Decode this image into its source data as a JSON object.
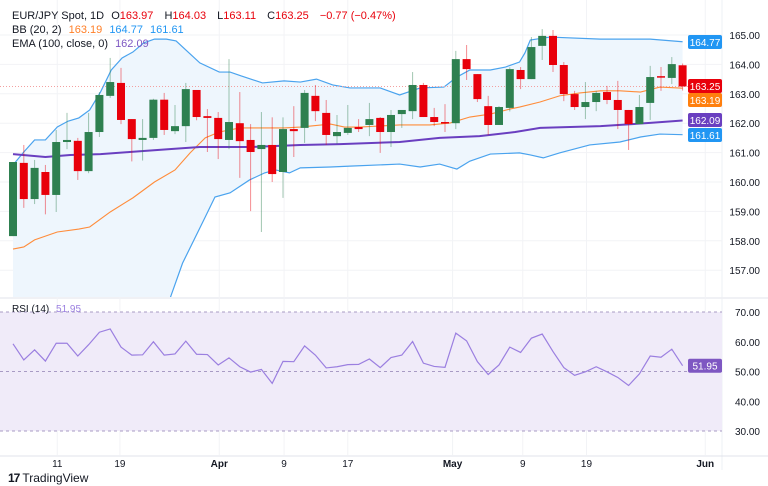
{
  "header": {
    "symbol": "EUR/JPY Spot, 1D",
    "open_label": "O",
    "open": "163.97",
    "high_label": "H",
    "high": "164.03",
    "low_label": "L",
    "low": "163.11",
    "close_label": "C",
    "close": "163.25",
    "change": "−0.77 (−0.47%)",
    "bb_label": "BB (20, 2)",
    "bb_mid": "163.19",
    "bb_upper": "164.77",
    "bb_lower": "161.61",
    "ema_label": "EMA (100, close, 0)",
    "ema": "162.09"
  },
  "rsi_header": {
    "label": "RSI (14)",
    "value": "51.95"
  },
  "branding": {
    "logo_text": "TradingView",
    "logo_mark": "17"
  },
  "colors": {
    "up": "#2e8050",
    "down": "#e8000b",
    "bb_band": "#4aa3ee",
    "bb_fill": "#eef6fd",
    "bb_mid": "#ff8c3a",
    "ema": "#6a3fc0",
    "rsi": "#9b7fe0",
    "rsi_fill": "#f0ebf9"
  },
  "chart_data": [
    {
      "type": "candlestick",
      "title": "EUR/JPY Spot, 1D",
      "ylim": [
        156.2,
        165.2
      ],
      "y_ticks": [
        "165.00",
        "164.00",
        "163.00",
        "162.00",
        "161.00",
        "160.00",
        "159.00",
        "158.00",
        "157.00"
      ],
      "x_ticks": [
        "11",
        "19",
        "Apr",
        "9",
        "17",
        "May",
        "9",
        "19",
        "Jun"
      ],
      "grid": true,
      "last_price": 163.25,
      "candles_ohlc": [
        [
          158.16,
          160.68,
          158.16,
          160.68
        ],
        [
          160.65,
          161.26,
          159.12,
          159.42
        ],
        [
          159.42,
          160.75,
          159.25,
          160.48
        ],
        [
          160.34,
          160.58,
          158.9,
          159.56
        ],
        [
          159.56,
          161.77,
          158.98,
          161.36
        ],
        [
          161.36,
          162.35,
          161.12,
          161.43
        ],
        [
          161.4,
          161.5,
          160.07,
          160.37
        ],
        [
          160.37,
          162.35,
          160.3,
          161.7
        ],
        [
          161.7,
          163.06,
          161.53,
          162.96
        ],
        [
          162.93,
          164.22,
          162.86,
          163.4
        ],
        [
          163.37,
          163.88,
          161.97,
          162.11
        ],
        [
          162.14,
          162.14,
          160.7,
          161.46
        ],
        [
          161.43,
          162.14,
          160.73,
          161.5
        ],
        [
          161.5,
          162.83,
          161.43,
          162.8
        ],
        [
          162.8,
          163.03,
          161.6,
          161.77
        ],
        [
          161.73,
          162.62,
          161.63,
          161.9
        ],
        [
          161.9,
          163.37,
          161.36,
          163.16
        ],
        [
          163.13,
          163.13,
          162.1,
          162.21
        ],
        [
          162.24,
          162.48,
          161.02,
          162.18
        ],
        [
          162.18,
          162.38,
          160.78,
          161.46
        ],
        [
          161.43,
          164.18,
          161.12,
          162.04
        ],
        [
          162.0,
          163.06,
          160.14,
          161.39
        ],
        [
          161.43,
          161.97,
          159.01,
          161.02
        ],
        [
          161.12,
          162.38,
          158.3,
          161.26
        ],
        [
          161.26,
          162.2,
          160.0,
          160.27
        ],
        [
          160.34,
          162.2,
          159.46,
          161.8
        ],
        [
          161.8,
          162.58,
          160.85,
          161.73
        ],
        [
          161.84,
          163.13,
          161.33,
          163.03
        ],
        [
          162.93,
          163.3,
          162.07,
          162.41
        ],
        [
          162.35,
          162.79,
          161.26,
          161.6
        ],
        [
          161.56,
          162.28,
          161.3,
          161.7
        ],
        [
          161.67,
          162.62,
          161.6,
          161.84
        ],
        [
          161.87,
          162.14,
          161.7,
          161.8
        ],
        [
          161.94,
          162.69,
          161.56,
          162.14
        ],
        [
          162.18,
          162.21,
          160.99,
          161.7
        ],
        [
          161.7,
          162.45,
          161.19,
          162.28
        ],
        [
          162.31,
          162.45,
          161.84,
          162.45
        ],
        [
          162.41,
          163.74,
          162.14,
          163.3
        ],
        [
          163.3,
          163.37,
          162.21,
          162.21
        ],
        [
          162.21,
          162.52,
          161.9,
          162.04
        ],
        [
          162.04,
          162.65,
          161.7,
          162.0
        ],
        [
          162.0,
          164.46,
          161.8,
          164.18
        ],
        [
          164.18,
          164.66,
          163.47,
          163.84
        ],
        [
          163.67,
          163.67,
          162.72,
          162.82
        ],
        [
          162.58,
          162.93,
          161.6,
          161.94
        ],
        [
          161.94,
          162.58,
          161.94,
          162.55
        ],
        [
          162.52,
          163.9,
          162.4,
          163.84
        ],
        [
          163.81,
          163.91,
          163.16,
          163.5
        ],
        [
          163.5,
          164.93,
          163.5,
          164.59
        ],
        [
          164.63,
          165.2,
          164.15,
          164.97
        ],
        [
          164.97,
          165.17,
          163.74,
          163.98
        ],
        [
          163.98,
          164.08,
          162.75,
          162.99
        ],
        [
          162.99,
          163.1,
          162.45,
          162.55
        ],
        [
          162.55,
          163.4,
          162.14,
          162.72
        ],
        [
          162.72,
          163.1,
          162.41,
          163.03
        ],
        [
          163.06,
          163.27,
          162.65,
          162.79
        ],
        [
          162.79,
          163.44,
          161.8,
          162.45
        ],
        [
          162.45,
          162.45,
          161.09,
          161.97
        ],
        [
          161.97,
          162.96,
          161.97,
          162.55
        ],
        [
          162.69,
          163.95,
          162.11,
          163.57
        ],
        [
          163.6,
          163.91,
          163.1,
          163.55
        ],
        [
          163.54,
          164.25,
          163.33,
          164.01
        ],
        [
          163.97,
          164.03,
          163.11,
          163.25
        ]
      ],
      "bb_upper": [
        [
          0,
          160.58
        ],
        [
          1,
          161.02
        ],
        [
          2,
          161.43
        ],
        [
          3,
          161.43
        ],
        [
          4.1,
          161.87
        ],
        [
          5.1,
          162.07
        ],
        [
          6.1,
          162.18
        ],
        [
          7.1,
          162.45
        ],
        [
          8.1,
          163.06
        ],
        [
          9.1,
          163.81
        ],
        [
          10.1,
          164.22
        ],
        [
          11.1,
          164.42
        ],
        [
          12.1,
          164.73
        ],
        [
          13.1,
          164.86
        ],
        [
          14.2,
          164.86
        ],
        [
          15.1,
          164.8
        ],
        [
          16,
          164.49
        ],
        [
          17.3,
          164.05
        ],
        [
          19.1,
          163.74
        ],
        [
          20.1,
          163.74
        ],
        [
          21.1,
          163.61
        ],
        [
          23.1,
          163.37
        ],
        [
          25.1,
          163.44
        ],
        [
          26.6,
          163.4
        ],
        [
          28.1,
          163.5
        ],
        [
          29.6,
          163.3
        ],
        [
          31.2,
          163.2
        ],
        [
          34,
          163.2
        ],
        [
          35.8,
          162.96
        ],
        [
          37.7,
          163.2
        ],
        [
          39.9,
          163.23
        ],
        [
          41.1,
          163.57
        ],
        [
          42.3,
          163.81
        ],
        [
          44.2,
          163.81
        ],
        [
          45.6,
          163.91
        ],
        [
          46.9,
          164.08
        ],
        [
          47.4,
          164.39
        ],
        [
          47.9,
          164.83
        ],
        [
          49.7,
          164.93
        ],
        [
          54.4,
          164.86
        ],
        [
          59,
          164.86
        ],
        [
          62,
          164.77
        ]
      ],
      "bb_middle": [
        [
          0,
          157.72
        ],
        [
          1,
          157.79
        ],
        [
          2,
          158.03
        ],
        [
          4.1,
          158.3
        ],
        [
          6.1,
          158.4
        ],
        [
          7.1,
          158.47
        ],
        [
          9,
          158.98
        ],
        [
          11.1,
          159.46
        ],
        [
          13.1,
          160.0
        ],
        [
          15,
          160.41
        ],
        [
          16.4,
          160.99
        ],
        [
          17.8,
          161.5
        ],
        [
          19.1,
          161.7
        ],
        [
          21,
          161.84
        ],
        [
          25.1,
          161.84
        ],
        [
          26.6,
          161.87
        ],
        [
          29.4,
          161.97
        ],
        [
          30.7,
          161.87
        ],
        [
          32.1,
          161.87
        ],
        [
          35.8,
          161.94
        ],
        [
          38.6,
          161.94
        ],
        [
          40.5,
          162.01
        ],
        [
          42.3,
          162.21
        ],
        [
          44.2,
          162.31
        ],
        [
          46,
          162.48
        ],
        [
          46.9,
          162.55
        ],
        [
          48.8,
          162.72
        ],
        [
          50.6,
          162.93
        ],
        [
          52.5,
          163.03
        ],
        [
          54.4,
          163.1
        ],
        [
          56.2,
          163.1
        ],
        [
          58.1,
          163.06
        ],
        [
          59.9,
          163.23
        ],
        [
          62,
          163.19
        ]
      ],
      "bb_lower": [
        [
          14.5,
          156.0
        ],
        [
          15.7,
          157.24
        ],
        [
          17.8,
          158.81
        ],
        [
          18.7,
          159.49
        ],
        [
          20.1,
          159.63
        ],
        [
          21.9,
          160.07
        ],
        [
          23.3,
          160.31
        ],
        [
          24.3,
          160.41
        ],
        [
          25.6,
          160.31
        ],
        [
          26.6,
          160.48
        ],
        [
          29.4,
          160.51
        ],
        [
          31.2,
          160.54
        ],
        [
          35.8,
          160.61
        ],
        [
          37.7,
          160.51
        ],
        [
          39.5,
          160.61
        ],
        [
          41.1,
          160.44
        ],
        [
          42.3,
          160.71
        ],
        [
          44.2,
          160.95
        ],
        [
          46.9,
          160.99
        ],
        [
          47.9,
          160.92
        ],
        [
          49.1,
          160.82
        ],
        [
          50.6,
          160.99
        ],
        [
          53.4,
          161.26
        ],
        [
          56.2,
          161.36
        ],
        [
          58.1,
          161.53
        ],
        [
          59.9,
          161.63
        ],
        [
          62,
          161.61
        ]
      ],
      "ema100": [
        [
          0,
          160.95
        ],
        [
          3,
          160.85
        ],
        [
          5.3,
          160.92
        ],
        [
          8.1,
          160.95
        ],
        [
          10.8,
          161.02
        ],
        [
          14.5,
          161.12
        ],
        [
          17.3,
          161.19
        ],
        [
          21.9,
          161.19
        ],
        [
          26.6,
          161.26
        ],
        [
          30.3,
          161.29
        ],
        [
          35.8,
          161.36
        ],
        [
          39.5,
          161.5
        ],
        [
          43.2,
          161.56
        ],
        [
          46.5,
          161.7
        ],
        [
          48.8,
          161.84
        ],
        [
          54.4,
          161.9
        ],
        [
          59,
          162.01
        ],
        [
          62,
          162.09
        ]
      ]
    },
    {
      "type": "line",
      "title": "RSI (14)",
      "ylim": [
        27,
        73
      ],
      "y_ticks": [
        "70.00",
        "60.00",
        "50.00",
        "40.00",
        "30.00"
      ],
      "bands": [
        30,
        70
      ],
      "midline": 50,
      "values": [
        59.3,
        53.9,
        57.3,
        53.5,
        59.5,
        59.5,
        55.2,
        59.0,
        63.2,
        64.3,
        58.2,
        55.5,
        55.6,
        60.0,
        55.5,
        55.9,
        60.2,
        55.8,
        55.7,
        52.2,
        54.6,
        51.6,
        49.8,
        50.7,
        46.0,
        53.4,
        53.3,
        58.6,
        55.5,
        51.2,
        51.6,
        52.3,
        52.4,
        54.2,
        51.3,
        54.7,
        55.5,
        60.1,
        52.8,
        51.7,
        51.4,
        62.9,
        60.3,
        53.3,
        49.0,
        52.2,
        58.2,
        56.4,
        61.2,
        62.6,
        56.7,
        51.3,
        48.7,
        49.9,
        51.6,
        49.9,
        48.0,
        45.3,
        49.2,
        55.2,
        54.8,
        57.5,
        51.95
      ]
    }
  ]
}
